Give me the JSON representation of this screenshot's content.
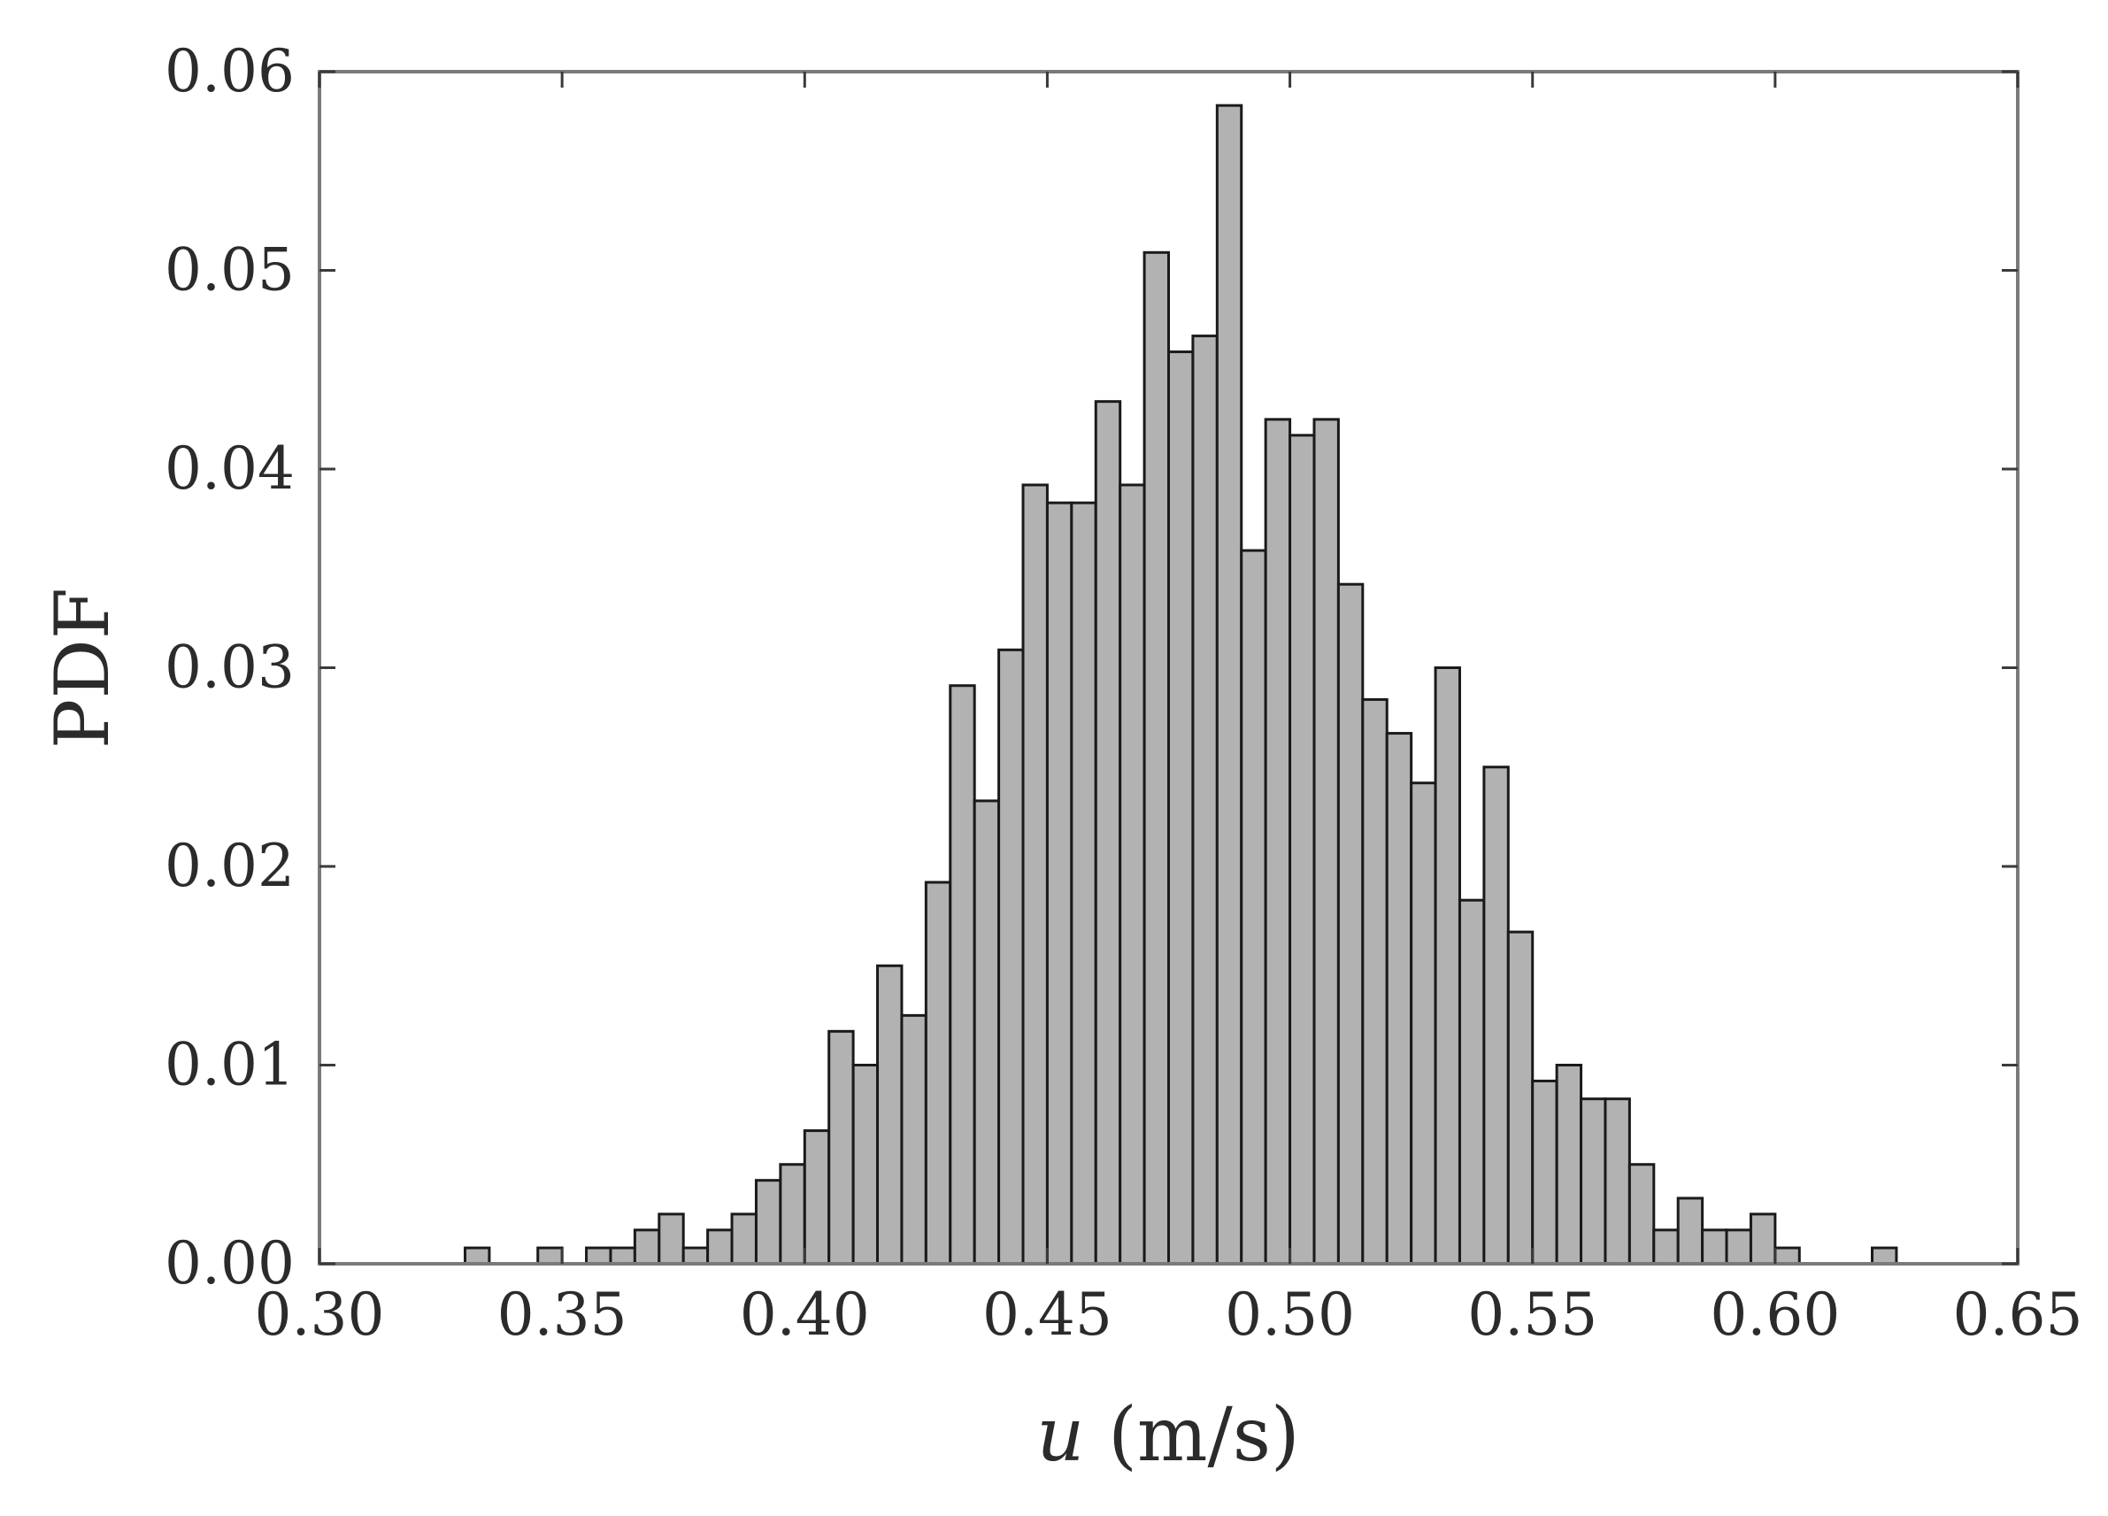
{
  "chart_data": {
    "type": "bar",
    "title": "",
    "xlabel_var": "u",
    "xlabel_unit": " (m/s)",
    "ylabel": "PDF",
    "xlim": [
      0.3,
      0.65
    ],
    "ylim": [
      0.0,
      0.06
    ],
    "x_ticks": [
      "0.30",
      "0.35",
      "0.40",
      "0.45",
      "0.50",
      "0.55",
      "0.60",
      "0.65"
    ],
    "y_ticks": [
      "0.00",
      "0.01",
      "0.02",
      "0.03",
      "0.04",
      "0.05",
      "0.06"
    ],
    "grid": false,
    "bin_width": 0.005,
    "bin_start": 0.31,
    "values": [
      0.0,
      0.0,
      0.0,
      0.0,
      0.0008,
      0.0,
      0.0,
      0.0008,
      0.0,
      0.0008,
      0.0008,
      0.0017,
      0.0025,
      0.0008,
      0.0017,
      0.0025,
      0.0042,
      0.005,
      0.0067,
      0.0117,
      0.01,
      0.015,
      0.0125,
      0.0192,
      0.0291,
      0.0233,
      0.0309,
      0.0392,
      0.0383,
      0.0383,
      0.0434,
      0.0392,
      0.0509,
      0.0459,
      0.0467,
      0.0583,
      0.0359,
      0.0425,
      0.0417,
      0.0425,
      0.0342,
      0.0284,
      0.0267,
      0.0242,
      0.03,
      0.0183,
      0.025,
      0.0167,
      0.0092,
      0.01,
      0.0083,
      0.0083,
      0.005,
      0.0017,
      0.0033,
      0.0017,
      0.0017,
      0.0025,
      0.0008,
      0.0,
      0.0,
      0.0,
      0.0008,
      0.0
    ]
  }
}
